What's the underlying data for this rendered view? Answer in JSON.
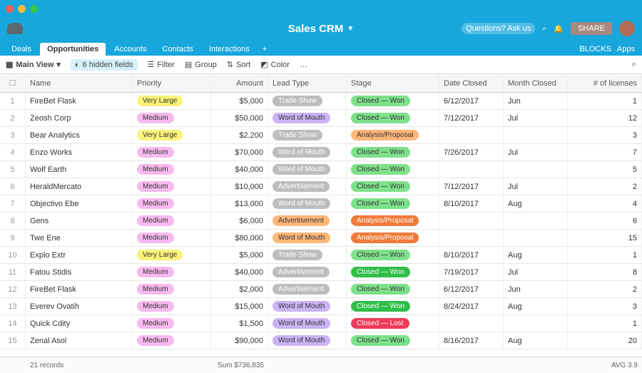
{
  "window": {
    "traffic_lights": [
      "#fc5f57",
      "#fdbc2e",
      "#33c748"
    ]
  },
  "appbar": {
    "base_title": "Sales CRM",
    "help_label": "Questions? Ask us",
    "share_label": "SHARE",
    "icons": [
      "help-icon",
      "search-icon",
      "bell-icon",
      "avatar"
    ]
  },
  "tabs": {
    "items": [
      {
        "label": "Deals"
      },
      {
        "label": "Opportunities",
        "active": true
      },
      {
        "label": "Accounts"
      },
      {
        "label": "Contacts"
      },
      {
        "label": "Interactions"
      }
    ],
    "right": [
      "BLOCKS",
      "Apps"
    ]
  },
  "viewbar": {
    "view_name": "Main View",
    "hidden_fields": "6 hidden fields",
    "filter": "Filter",
    "group": "Group",
    "sort": "Sort",
    "color": "Color"
  },
  "columns": {
    "num": "",
    "name": "Name",
    "status": "Priority",
    "amount": "Amount",
    "lead": "Lead Type",
    "stage": "Stage",
    "date": "Date Closed",
    "month": "Month Closed",
    "lic": "# of licenses"
  },
  "rows": [
    {
      "num": "1",
      "name": "FireBet Flask",
      "status": "Very Large",
      "status_c": "yellow",
      "amount": "$5,000",
      "lead": "Trade Show",
      "lead_c": "gray",
      "stage": "Closed — Won",
      "stage_c": "green",
      "date": "6/12/2017",
      "month": "Jun",
      "lic": "1"
    },
    {
      "num": "2",
      "name": "Zeosh Corp",
      "status": "Medium",
      "status_c": "pink",
      "amount": "$50,000",
      "lead": "Word of Mouth",
      "lead_c": "purple",
      "stage": "Closed — Won",
      "stage_c": "green",
      "date": "7/12/2017",
      "month": "Jul",
      "lic": "12"
    },
    {
      "num": "3",
      "name": "Bear Analytics",
      "status": "Very Large",
      "status_c": "yellow",
      "amount": "$2,200",
      "lead": "Trade Show",
      "lead_c": "gray",
      "stage": "Analysis/Proposal",
      "stage_c": "orange",
      "date": "",
      "month": "",
      "lic": "3"
    },
    {
      "num": "4",
      "name": "Enzo Works",
      "status": "Medium",
      "status_c": "pink",
      "amount": "$70,000",
      "lead": "Word of Mouth",
      "lead_c": "gray",
      "stage": "Closed — Won",
      "stage_c": "green",
      "date": "7/26/2017",
      "month": "Jul",
      "lic": "7"
    },
    {
      "num": "5",
      "name": "Wolf Earth",
      "status": "Medium",
      "status_c": "pink",
      "amount": "$40,000",
      "lead": "Word of Mouth",
      "lead_c": "gray",
      "stage": "Closed — Won",
      "stage_c": "green",
      "date": "",
      "month": "",
      "lic": "5"
    },
    {
      "num": "6",
      "name": "HeraldMercato",
      "status": "Medium",
      "status_c": "pink",
      "amount": "$10,000",
      "lead": "Advertisement",
      "lead_c": "gray",
      "stage": "Closed — Won",
      "stage_c": "green",
      "date": "7/12/2017",
      "month": "Jul",
      "lic": "2"
    },
    {
      "num": "7",
      "name": "Objectivo Ebe",
      "status": "Medium",
      "status_c": "pink",
      "amount": "$13,000",
      "lead": "Word of Mouth",
      "lead_c": "gray",
      "stage": "Closed — Won",
      "stage_c": "green",
      "date": "8/10/2017",
      "month": "Aug",
      "lic": "4"
    },
    {
      "num": "8",
      "name": "Gens",
      "status": "Medium",
      "status_c": "pink",
      "amount": "$6,000",
      "lead": "Advertisement",
      "lead_c": "orange",
      "stage": "Analysis/Proposal",
      "stage_c": "oranged",
      "date": "",
      "month": "",
      "lic": "6"
    },
    {
      "num": "9",
      "name": "Twe Ene",
      "status": "Medium",
      "status_c": "pink",
      "amount": "$80,000",
      "lead": "Word of Mouth",
      "lead_c": "orange",
      "stage": "Analysis/Proposal",
      "stage_c": "oranged",
      "date": "",
      "month": "",
      "lic": "15"
    },
    {
      "num": "10",
      "name": "Explo Extr",
      "status": "Very Large",
      "status_c": "yellow",
      "amount": "$5,000",
      "lead": "Trade Show",
      "lead_c": "gray",
      "stage": "Closed — Won",
      "stage_c": "green",
      "date": "8/10/2017",
      "month": "Aug",
      "lic": "1"
    },
    {
      "num": "11",
      "name": "Fatou Stidis",
      "status": "Medium",
      "status_c": "pink",
      "amount": "$40,000",
      "lead": "Advertisement",
      "lead_c": "gray",
      "stage": "Closed — Won",
      "stage_c": "greend",
      "date": "7/19/2017",
      "month": "Jul",
      "lic": "8"
    },
    {
      "num": "12",
      "name": "FireBet Flask",
      "status": "Medium",
      "status_c": "pink",
      "amount": "$2,000",
      "lead": "Advertisement",
      "lead_c": "gray",
      "stage": "Closed — Won",
      "stage_c": "green",
      "date": "6/12/2017",
      "month": "Jun",
      "lic": "2"
    },
    {
      "num": "13",
      "name": "Everev Ovatih",
      "status": "Medium",
      "status_c": "pink",
      "amount": "$15,000",
      "lead": "Word of Mouth",
      "lead_c": "purple",
      "stage": "Closed — Won",
      "stage_c": "greend",
      "date": "8/24/2017",
      "month": "Aug",
      "lic": "3"
    },
    {
      "num": "14",
      "name": "Quick Cdity",
      "status": "Medium",
      "status_c": "pink",
      "amount": "$1,500",
      "lead": "Word of Mouth",
      "lead_c": "purple",
      "stage": "Closed — Lost",
      "stage_c": "red",
      "date": "",
      "month": "",
      "lic": "1"
    },
    {
      "num": "15",
      "name": "Zenal Asol",
      "status": "Medium",
      "status_c": "pink",
      "amount": "$90,000",
      "lead": "Word of Mouth",
      "lead_c": "purple",
      "stage": "Closed — Won",
      "stage_c": "green",
      "date": "8/16/2017",
      "month": "Aug",
      "lic": "20"
    }
  ],
  "footer": {
    "records": "21 records",
    "sum": "Sum $736,835",
    "avg": "AVG 3.9"
  }
}
